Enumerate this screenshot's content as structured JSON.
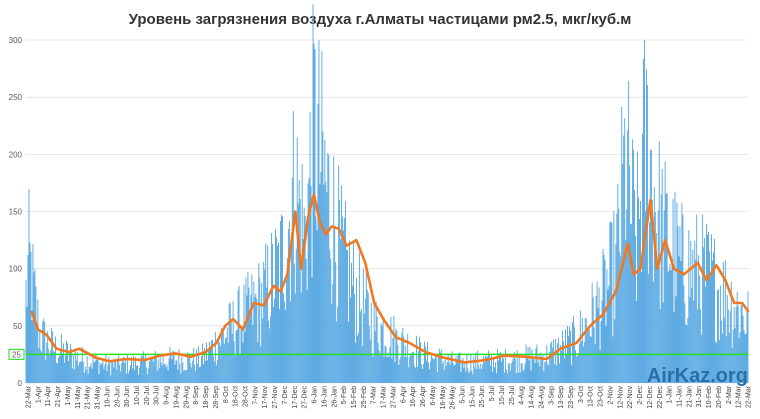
{
  "chart_data": {
    "type": "bar",
    "title": "Уровень загрязнения воздуха г.Алматы частицами рм2.5, мкг/куб.м",
    "xlabel": "",
    "ylabel": "",
    "ylim": [
      0,
      300
    ],
    "yticks": [
      0,
      50,
      100,
      150,
      200,
      250,
      300
    ],
    "grid": "horizontal",
    "legend": "none",
    "threshold": {
      "value": 25,
      "label": "25",
      "color": "#22e022"
    },
    "colors": {
      "bars": "#4da3e0",
      "line": "#f07820",
      "brand": "#2a6fa8"
    },
    "brand": "AirKaz.org",
    "x_start": "2017-03-22",
    "x_end": "2019-03-24",
    "x_tick_labels": [
      "22-Mar",
      "1-Apr",
      "11-Apr",
      "21-Apr",
      "1-May",
      "11-May",
      "21-May",
      "31-May",
      "10-Jun",
      "20-Jun",
      "30-Jun",
      "10-Jul",
      "20-Jul",
      "30-Jul",
      "9-Aug",
      "19-Aug",
      "29-Aug",
      "8-Sep",
      "18-Sep",
      "28-Sep",
      "8-Oct",
      "18-Oct",
      "28-Oct",
      "7-Nov",
      "17-Nov",
      "27-Nov",
      "7-Dec",
      "17-Dec",
      "27-Dec",
      "6-Jan",
      "16-Jan",
      "26-Jan",
      "5-Feb",
      "15-Feb",
      "25-Feb",
      "7-Mar",
      "17-Mar",
      "27-Mar",
      "6-Apr",
      "16-Apr",
      "26-Apr",
      "6-May",
      "16-May",
      "26-May",
      "5-Jun",
      "15-Jun",
      "25-Jun",
      "5-Jul",
      "15-Jul",
      "25-Jul",
      "4-Aug",
      "14-Aug",
      "24-Aug",
      "3-Sep",
      "13-Sep",
      "23-Sep",
      "3-Oct",
      "13-Oct",
      "23-Oct",
      "2-Nov",
      "12-Nov",
      "22-Nov",
      "2-Dec",
      "12-Dec",
      "22-Dec",
      "1-Jan",
      "11-Jan",
      "21-Jan",
      "31-Jan",
      "10-Feb",
      "20-Feb",
      "2-Mar",
      "12-Mar",
      "22-Mar"
    ],
    "series": [
      {
        "type": "bar",
        "x_step_days": 1,
        "values_key_points": [
          {
            "date": "2017-03-22",
            "value": 90
          },
          {
            "date": "2017-03-25",
            "value": 126
          },
          {
            "date": "2017-04-05",
            "value": 50
          },
          {
            "date": "2017-04-20",
            "value": 35
          },
          {
            "date": "2017-05-15",
            "value": 25
          },
          {
            "date": "2017-06-15",
            "value": 18
          },
          {
            "date": "2017-07-15",
            "value": 20
          },
          {
            "date": "2017-08-15",
            "value": 24
          },
          {
            "date": "2017-09-15",
            "value": 24
          },
          {
            "date": "2017-10-05",
            "value": 45
          },
          {
            "date": "2017-10-25",
            "value": 65
          },
          {
            "date": "2017-11-15",
            "value": 85
          },
          {
            "date": "2017-12-05",
            "value": 120
          },
          {
            "date": "2017-12-20",
            "value": 200
          },
          {
            "date": "2017-12-30",
            "value": 150
          },
          {
            "date": "2018-01-08",
            "value": 259
          },
          {
            "date": "2018-01-20",
            "value": 200
          },
          {
            "date": "2018-02-05",
            "value": 130
          },
          {
            "date": "2018-02-20",
            "value": 90
          },
          {
            "date": "2018-03-10",
            "value": 60
          },
          {
            "date": "2018-04-01",
            "value": 45
          },
          {
            "date": "2018-05-01",
            "value": 28
          },
          {
            "date": "2018-06-01",
            "value": 20
          },
          {
            "date": "2018-07-01",
            "value": 22
          },
          {
            "date": "2018-08-01",
            "value": 24
          },
          {
            "date": "2018-09-01",
            "value": 28
          },
          {
            "date": "2018-10-01",
            "value": 45
          },
          {
            "date": "2018-10-25",
            "value": 80
          },
          {
            "date": "2018-11-10",
            "value": 120
          },
          {
            "date": "2018-11-20",
            "value": 226
          },
          {
            "date": "2018-12-01",
            "value": 140
          },
          {
            "date": "2018-12-10",
            "value": 249
          },
          {
            "date": "2018-12-25",
            "value": 160
          },
          {
            "date": "2019-01-15",
            "value": 120
          },
          {
            "date": "2019-02-10",
            "value": 110
          },
          {
            "date": "2019-03-01",
            "value": 90
          },
          {
            "date": "2019-03-24",
            "value": 65
          }
        ]
      },
      {
        "type": "line",
        "points": [
          {
            "date": "2017-03-28",
            "value": 62
          },
          {
            "date": "2017-04-03",
            "value": 47
          },
          {
            "date": "2017-04-12",
            "value": 42
          },
          {
            "date": "2017-04-22",
            "value": 30
          },
          {
            "date": "2017-05-05",
            "value": 27
          },
          {
            "date": "2017-05-15",
            "value": 30
          },
          {
            "date": "2017-06-01",
            "value": 22
          },
          {
            "date": "2017-06-15",
            "value": 19
          },
          {
            "date": "2017-07-01",
            "value": 21
          },
          {
            "date": "2017-07-20",
            "value": 20
          },
          {
            "date": "2017-08-05",
            "value": 24
          },
          {
            "date": "2017-08-20",
            "value": 26
          },
          {
            "date": "2017-09-05",
            "value": 23
          },
          {
            "date": "2017-09-20",
            "value": 27
          },
          {
            "date": "2017-10-01",
            "value": 35
          },
          {
            "date": "2017-10-10",
            "value": 50
          },
          {
            "date": "2017-10-18",
            "value": 56
          },
          {
            "date": "2017-10-28",
            "value": 47
          },
          {
            "date": "2017-11-08",
            "value": 70
          },
          {
            "date": "2017-11-18",
            "value": 68
          },
          {
            "date": "2017-11-28",
            "value": 85
          },
          {
            "date": "2017-12-05",
            "value": 80
          },
          {
            "date": "2017-12-12",
            "value": 95
          },
          {
            "date": "2017-12-20",
            "value": 150
          },
          {
            "date": "2017-12-26",
            "value": 100
          },
          {
            "date": "2018-01-02",
            "value": 145
          },
          {
            "date": "2018-01-08",
            "value": 165
          },
          {
            "date": "2018-01-14",
            "value": 140
          },
          {
            "date": "2018-01-20",
            "value": 130
          },
          {
            "date": "2018-01-26",
            "value": 137
          },
          {
            "date": "2018-02-02",
            "value": 135
          },
          {
            "date": "2018-02-10",
            "value": 120
          },
          {
            "date": "2018-02-20",
            "value": 125
          },
          {
            "date": "2018-03-01",
            "value": 105
          },
          {
            "date": "2018-03-10",
            "value": 70
          },
          {
            "date": "2018-03-20",
            "value": 55
          },
          {
            "date": "2018-04-01",
            "value": 40
          },
          {
            "date": "2018-04-15",
            "value": 35
          },
          {
            "date": "2018-05-01",
            "value": 27
          },
          {
            "date": "2018-05-20",
            "value": 22
          },
          {
            "date": "2018-06-10",
            "value": 18
          },
          {
            "date": "2018-07-01",
            "value": 20
          },
          {
            "date": "2018-07-20",
            "value": 24
          },
          {
            "date": "2018-08-10",
            "value": 23
          },
          {
            "date": "2018-09-01",
            "value": 21
          },
          {
            "date": "2018-09-15",
            "value": 30
          },
          {
            "date": "2018-10-01",
            "value": 35
          },
          {
            "date": "2018-10-15",
            "value": 50
          },
          {
            "date": "2018-10-28",
            "value": 60
          },
          {
            "date": "2018-11-10",
            "value": 80
          },
          {
            "date": "2018-11-22",
            "value": 122
          },
          {
            "date": "2018-11-28",
            "value": 95
          },
          {
            "date": "2018-12-05",
            "value": 100
          },
          {
            "date": "2018-12-15",
            "value": 160
          },
          {
            "date": "2018-12-22",
            "value": 100
          },
          {
            "date": "2018-12-30",
            "value": 125
          },
          {
            "date": "2019-01-08",
            "value": 100
          },
          {
            "date": "2019-01-18",
            "value": 95
          },
          {
            "date": "2019-02-01",
            "value": 105
          },
          {
            "date": "2019-02-10",
            "value": 90
          },
          {
            "date": "2019-02-20",
            "value": 103
          },
          {
            "date": "2019-03-01",
            "value": 90
          },
          {
            "date": "2019-03-10",
            "value": 70
          },
          {
            "date": "2019-03-18",
            "value": 70
          },
          {
            "date": "2019-03-24",
            "value": 63
          }
        ]
      }
    ]
  }
}
